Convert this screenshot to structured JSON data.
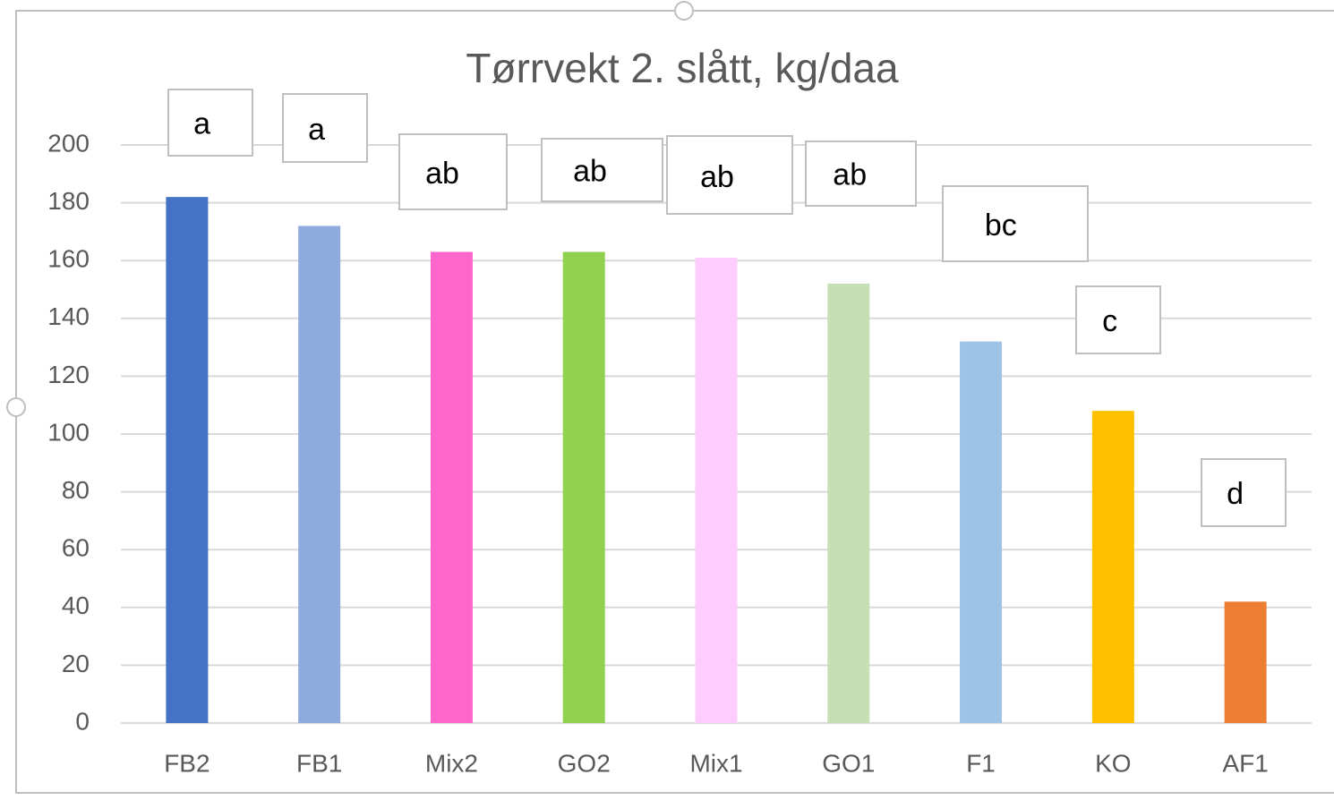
{
  "chart_data": {
    "type": "bar",
    "title": "Tørrvekt 2. slått, kg/daa",
    "categories": [
      "FB2",
      "FB1",
      "Mix2",
      "GO2",
      "Mix1",
      "GO1",
      "F1",
      "KO",
      "AF1"
    ],
    "values": [
      182,
      172,
      163,
      163,
      161,
      152,
      132,
      108,
      42
    ],
    "colors": [
      "#4472c4",
      "#8faadc",
      "#ff66cc",
      "#92d050",
      "#ffccff",
      "#c5e0b4",
      "#9dc3e6",
      "#ffc000",
      "#ed7d31"
    ],
    "annotations": [
      "a",
      "a",
      "ab",
      "ab",
      "ab",
      "ab",
      "bc",
      "c",
      "d"
    ],
    "ylim": [
      0,
      200
    ],
    "yticks": [
      0,
      20,
      40,
      60,
      80,
      100,
      120,
      140,
      160,
      180,
      200
    ],
    "grid": true
  }
}
